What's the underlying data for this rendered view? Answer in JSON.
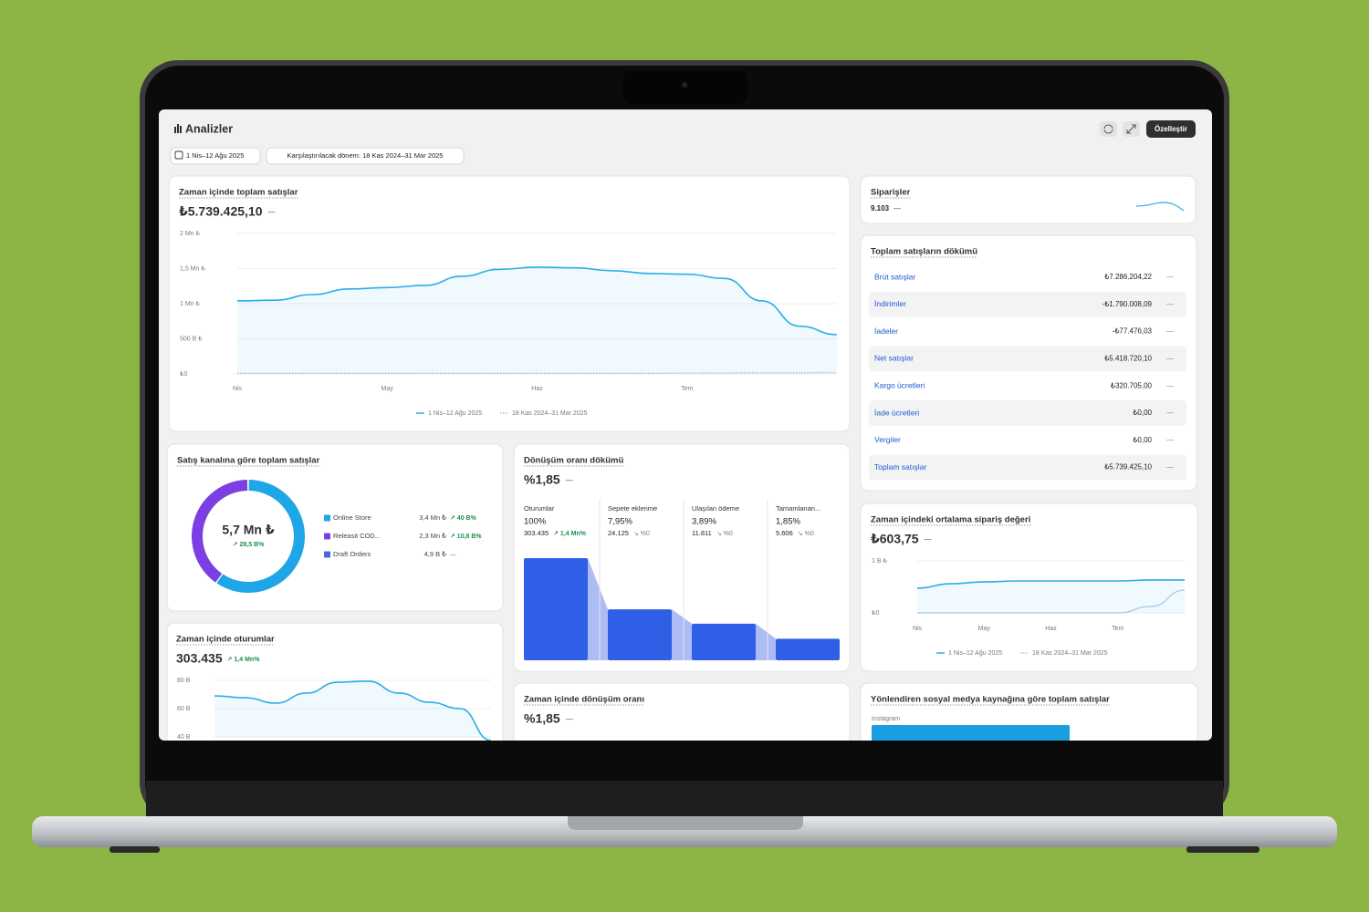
{
  "header": {
    "title": "Analizler",
    "customize_button": "Özelleştir",
    "date_range": "1 Nis–12 Ağu 2025",
    "compare_range": "Karşılaştırılacak dönem: 18 Kas 2024–31 Mar 2025"
  },
  "total_sales": {
    "type": "line",
    "title": "Zaman içinde toplam satışlar",
    "value": "₺5.739.425,10",
    "change": "—",
    "x_labels": [
      "Nis",
      "May",
      "Haz",
      "Tem"
    ],
    "ylim": [
      0,
      2000000
    ],
    "yticks": [
      {
        "value": 2000000,
        "label": "2 Mn ₺"
      },
      {
        "value": 1500000,
        "label": "1,5 Mn ₺"
      },
      {
        "value": 1000000,
        "label": "1 Mn ₺"
      },
      {
        "value": 500000,
        "label": "500 B ₺"
      },
      {
        "value": 0,
        "label": "₺0"
      }
    ],
    "grid": true,
    "series": [
      {
        "name": "1 Nis–12 Ağu 2025",
        "color": "#2aaee6",
        "values": [
          1040000,
          1050000,
          1130000,
          1210000,
          1230000,
          1260000,
          1390000,
          1490000,
          1520000,
          1510000,
          1470000,
          1430000,
          1420000,
          1360000,
          1040000,
          680000,
          560000
        ]
      },
      {
        "name": "18 Kas 2024–31 Mar 2025",
        "color": "#8fbfe4",
        "values": [
          10000,
          10000,
          10000,
          10000,
          10000,
          10000,
          10000,
          10000,
          10000,
          10000,
          10000,
          10000,
          12000,
          14000,
          16000,
          18000,
          20000
        ]
      }
    ]
  },
  "orders": {
    "title": "Siparişler",
    "value": "9.103",
    "change": "—"
  },
  "breakdown": {
    "title": "Toplam satışların dökümü",
    "rows": [
      [
        "Brüt satışlar",
        "₺7.286.204,22",
        "—"
      ],
      [
        "İndirimler",
        "-₺1.790.008,09",
        "—"
      ],
      [
        "İadeler",
        "-₺77.476,03",
        "—"
      ],
      [
        "Net satışlar",
        "₺5.418.720,10",
        "—"
      ],
      [
        "Kargo ücretleri",
        "₺320.705,00",
        "—"
      ],
      [
        "İade ücretleri",
        "₺0,00",
        "—"
      ],
      [
        "Vergiler",
        "₺0,00",
        "—"
      ],
      [
        "Toplam satışlar",
        "₺5.739.425,10",
        "—"
      ]
    ]
  },
  "channels": {
    "type": "donut",
    "title": "Satış kanalına göre toplam satışlar",
    "center_value": "5,7 Mn ₺",
    "center_change": "↗ 28,5 B%",
    "categories": [
      "Online Store",
      "Releasit COD...",
      "Draft Orders"
    ],
    "values": [
      3400000,
      2300000,
      4900
    ],
    "value_labels": [
      "3,4 Mn ₺",
      "2,3 Mn ₺",
      "4,9 B ₺"
    ],
    "changes": [
      "↗ 40 B%",
      "↗ 10,8 B%",
      "—"
    ],
    "colors": [
      "#1ea6e6",
      "#7b3fe4",
      "#4a6ad8"
    ]
  },
  "funnel": {
    "type": "bar",
    "title": "Dönüşüm oranı dökümü",
    "value": "%1,85",
    "change": "—",
    "scale": "log",
    "color": "#2f5fe6",
    "categories": [
      "Oturumlar",
      "Sepete eklenme",
      "Ulaşılan ödeme",
      "Tamamlanan..."
    ],
    "values": [
      100,
      7.95,
      3.89,
      1.85
    ],
    "value_labels": [
      "100%",
      "7,95%",
      "3,89%",
      "1,85%"
    ],
    "counts": [
      "303.435",
      "24.125",
      "11.811",
      "5.606"
    ],
    "changes": [
      "↗ 1,4 Mn%",
      "↘ %0",
      "↘ %0",
      "↘ %0"
    ]
  },
  "sessions": {
    "type": "line",
    "title": "Zaman içinde oturumlar",
    "value": "303.435",
    "change": "↗ 1,4 Mn%",
    "ylim": [
      40000,
      80000
    ],
    "yticks": [
      {
        "value": 80000,
        "label": "80 B"
      },
      {
        "value": 60000,
        "label": "60 B"
      },
      {
        "value": 40000,
        "label": "40 B"
      }
    ],
    "grid": true,
    "series": [
      {
        "color": "#2aaee6",
        "values": [
          69000,
          67700,
          63900,
          71000,
          78700,
          79400,
          71000,
          64500,
          60000,
          37400
        ]
      }
    ]
  },
  "conversion_time": {
    "title": "Zaman içinde dönüşüm oranı",
    "value": "%1,85",
    "change": "—"
  },
  "aov": {
    "type": "line",
    "title": "Zaman içindeki ortalama sipariş değeri",
    "value": "₺603,75",
    "change": "—",
    "x_labels": [
      "Nis",
      "May",
      "Haz",
      "Tem"
    ],
    "ylim": [
      0,
      1000
    ],
    "yticks": [
      {
        "value": 1000,
        "label": "1 B ₺"
      },
      {
        "value": 0,
        "label": "₺0"
      }
    ],
    "grid": true,
    "series": [
      {
        "name": "1 Nis–12 Ağu 2025",
        "color": "#2aaee6",
        "values": [
          474,
          561,
          596,
          614,
          614,
          614,
          614,
          632,
          632
        ]
      },
      {
        "name": "18 Kas 2024–31 Mar 2025",
        "color": "#9cc9ea",
        "values": [
          0,
          0,
          0,
          0,
          0,
          0,
          0,
          123,
          439
        ]
      }
    ]
  },
  "social": {
    "title": "Yönlendiren sosyal medya kaynağına göre toplam satışlar",
    "label": "Instagram"
  }
}
